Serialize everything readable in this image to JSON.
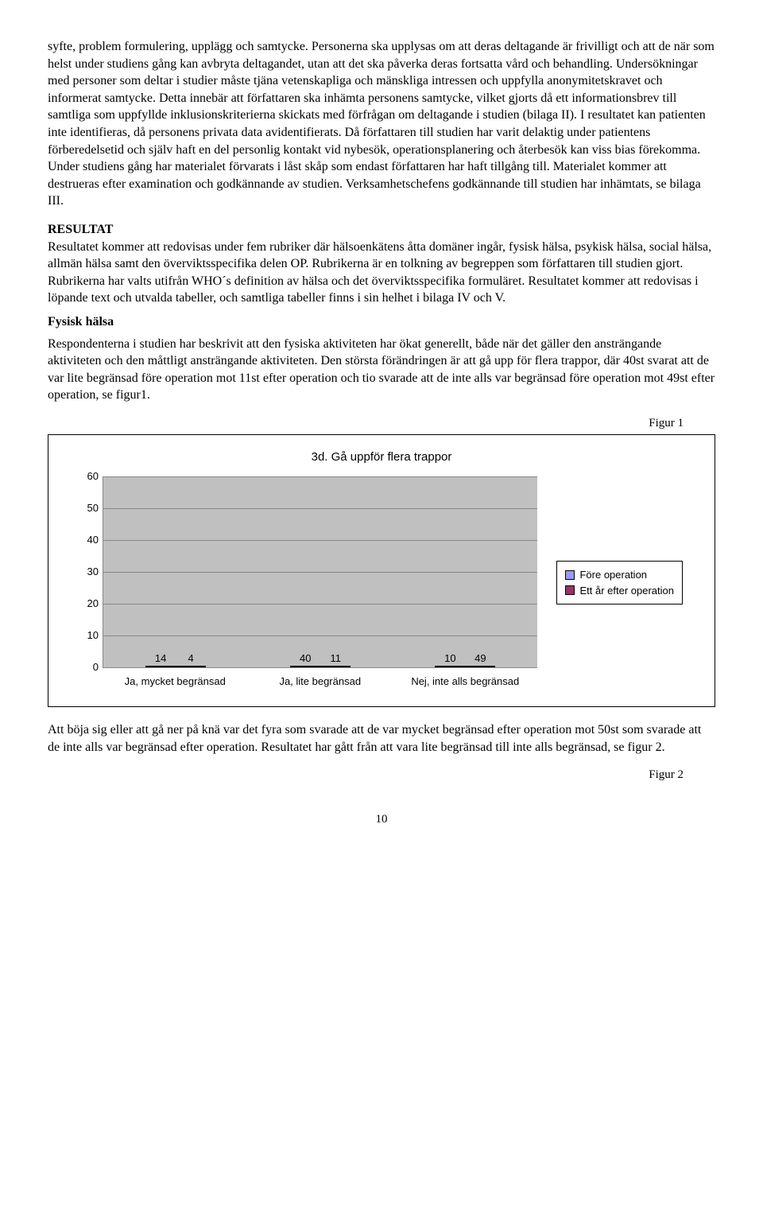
{
  "para1": "syfte, problem formulering, upplägg och samtycke. Personerna ska upplysas om att deras deltagande är frivilligt och att de när som helst under studiens gång kan avbryta deltagandet, utan att det ska påverka deras fortsatta vård och behandling. Undersökningar med personer som deltar i studier måste tjäna vetenskapliga och mänskliga intressen och uppfylla anonymitetskravet och informerat samtycke. Detta innebär att författaren ska inhämta personens samtycke, vilket gjorts då ett informationsbrev till samtliga som uppfyllde inklusionskriterierna skickats med förfrågan om deltagande i studien (bilaga II). I resultatet kan patienten inte identifieras, då personens privata data avidentifierats. Då författaren till studien har varit delaktig under patientens förberedelsetid och själv haft en del personlig kontakt vid nybesök, operationsplanering och återbesök kan viss bias förekomma. Under studiens gång har materialet förvarats i låst skåp som endast författaren har haft tillgång till. Materialet kommer att destrueras efter examination och godkännande av studien. Verksamhetschefens godkännande till studien har inhämtats, se bilaga III.",
  "resultat_heading": "RESULTAT",
  "resultat_body": "Resultatet kommer att redovisas under fem rubriker där hälsoenkätens åtta domäner ingår, fysisk hälsa, psykisk hälsa, social hälsa, allmän hälsa samt den överviktsspecifika delen OP. Rubrikerna är en tolkning av begreppen som författaren till studien gjort. Rubrikerna har valts utifrån WHO´s definition av hälsa och det överviktsspecifika formuläret. Resultatet kommer att redovisas i löpande text och utvalda tabeller, och samtliga tabeller finns i sin helhet i bilaga IV och V.",
  "fysisk_heading": "Fysisk hälsa",
  "fysisk_body": "Respondenterna i studien har beskrivit att den fysiska aktiviteten har ökat generellt, både när det gäller den ansträngande aktiviteten och den måttligt ansträngande aktiviteten. Den största förändringen är att gå upp för flera trappor, där 40st svarat att de var lite begränsad före operation mot 11st efter operation och tio svarade att de inte alls var begränsad före operation mot 49st efter operation, se figur1.",
  "closing_para": "Att böja sig eller att gå ner på knä var det fyra som svarade att de var mycket begränsad efter operation mot 50st som svarade att de inte alls var begränsad efter operation. Resultatet har gått från att vara lite begränsad till inte alls begränsad, se figur 2.",
  "page_number": "10",
  "figure1_label": "Figur 1",
  "figure2_label": "Figur 2",
  "chart": {
    "title": "3d. Gå uppför flera trappor",
    "categories": [
      "Ja, mycket begränsad",
      "Ja, lite begränsad",
      "Nej, inte alls begränsad"
    ],
    "series": [
      {
        "name": "Före operation",
        "color": "#9999ff",
        "values": [
          14,
          40,
          10
        ]
      },
      {
        "name": "Ett år efter operation",
        "color": "#993366",
        "values": [
          4,
          11,
          49
        ]
      }
    ],
    "ylim": [
      0,
      60
    ],
    "ytick_step": 10,
    "plot_bg": "#c0c0c0",
    "grid_color": "#888888"
  }
}
